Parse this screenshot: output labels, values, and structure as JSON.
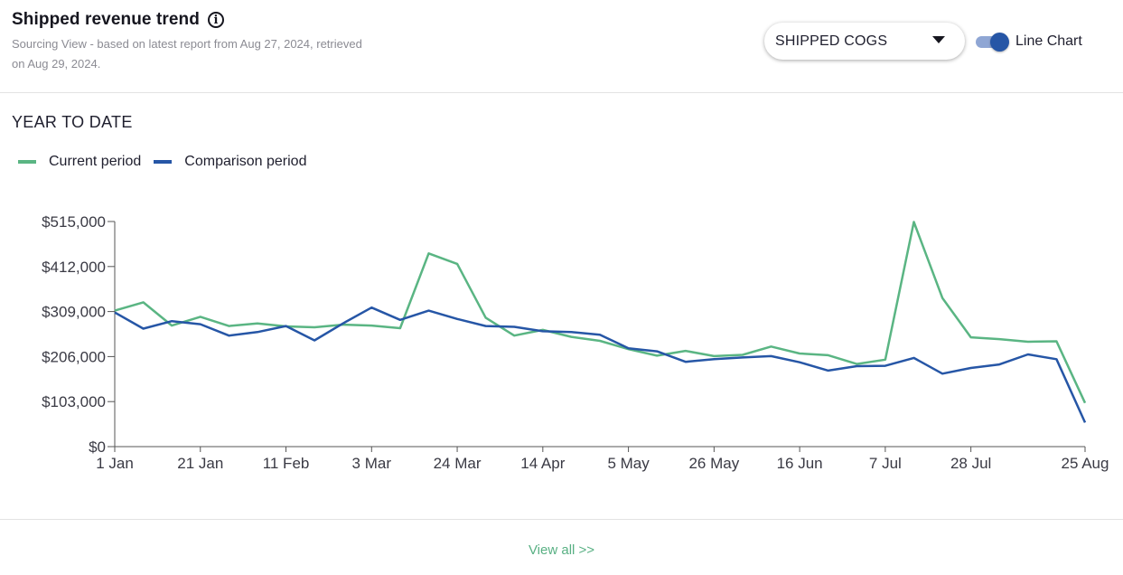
{
  "header": {
    "title": "Shipped revenue trend",
    "info_icon": "info-icon",
    "subtitle": "Sourcing View - based on latest report from Aug 27, 2024, retrieved on Aug 29, 2024."
  },
  "controls": {
    "dropdown_value": "SHIPPED COGS",
    "toggle_label": "Line Chart",
    "toggle_on": true
  },
  "section": {
    "title": "YEAR TO DATE"
  },
  "footer": {
    "view_all": "View all >>"
  },
  "colors": {
    "current": "#5ab583",
    "comparison": "#2656a6",
    "accent": "#58b083"
  },
  "chart_data": {
    "type": "line",
    "title": "",
    "xlabel": "",
    "ylabel": "",
    "ylim": [
      0,
      515000
    ],
    "y_ticks": [
      "$0",
      "$103,000",
      "$206,000",
      "$309,000",
      "$412,000",
      "$515,000"
    ],
    "x_ticks": [
      "1 Jan",
      "21 Jan",
      "11 Feb",
      "3 Mar",
      "24 Mar",
      "14 Apr",
      "5 May",
      "26 May",
      "16 Jun",
      "7 Jul",
      "28 Jul",
      "25 Aug"
    ],
    "legend_position": "top-left",
    "grid": false,
    "series": [
      {
        "name": "Current period",
        "values": [
          311000,
          330000,
          277000,
          297000,
          276000,
          282000,
          275000,
          273000,
          279000,
          277000,
          271000,
          442000,
          418000,
          295000,
          254000,
          267000,
          251000,
          242000,
          223000,
          208000,
          219000,
          207000,
          210000,
          229000,
          213000,
          209000,
          189000,
          199000,
          514000,
          340000,
          250000,
          246000,
          240000,
          241000,
          100000
        ]
      },
      {
        "name": "Comparison period",
        "values": [
          307000,
          270000,
          287000,
          280000,
          254000,
          262000,
          276000,
          243000,
          282000,
          318000,
          290000,
          311000,
          292000,
          276000,
          274000,
          264000,
          262000,
          256000,
          225000,
          218000,
          194000,
          200000,
          204000,
          207000,
          193000,
          174000,
          184000,
          185000,
          203000,
          167000,
          180000,
          188000,
          211000,
          200000,
          55000
        ]
      }
    ]
  }
}
